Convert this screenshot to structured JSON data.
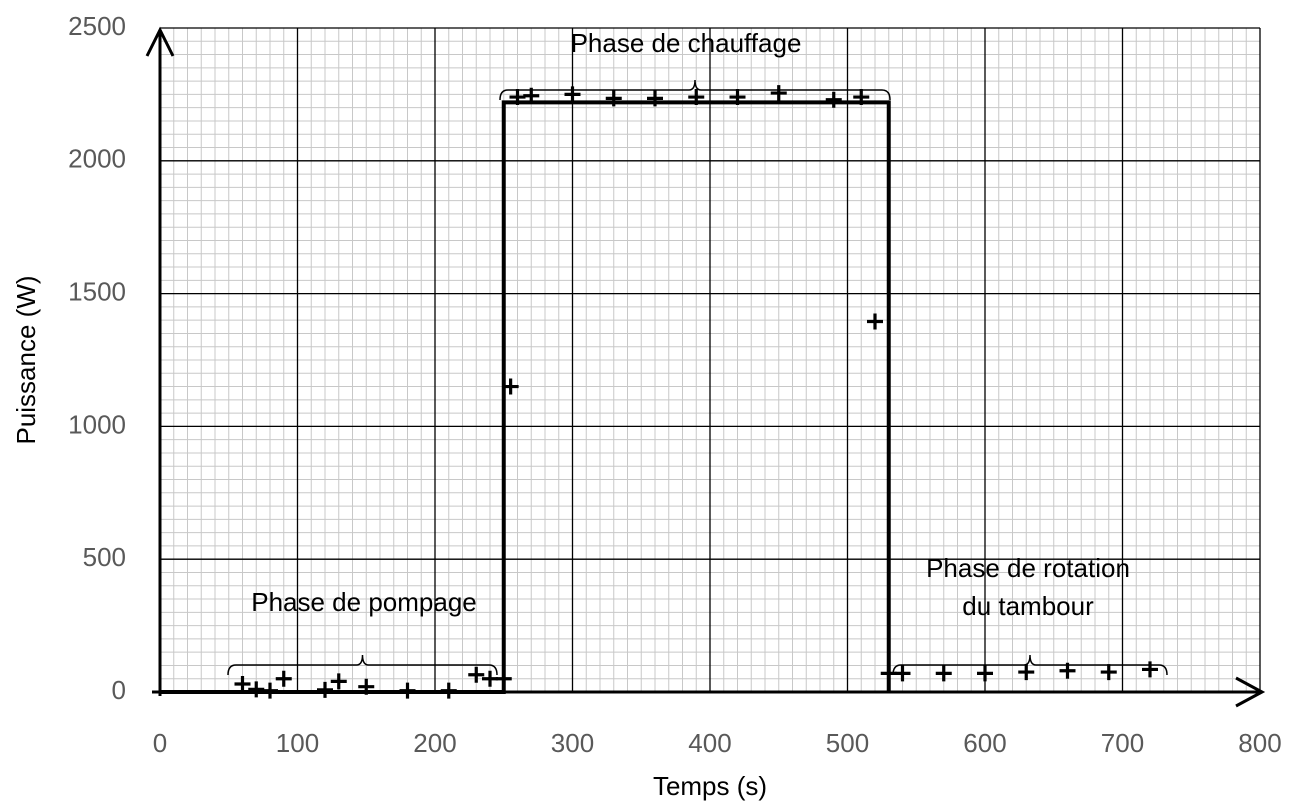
{
  "chart_data": {
    "type": "scatter",
    "xlabel": "Temps (s)",
    "ylabel": "Puissance (W)",
    "xlim": [
      0,
      800
    ],
    "ylim": [
      0,
      2500
    ],
    "xticks": [
      0,
      100,
      200,
      300,
      400,
      500,
      600,
      700,
      800
    ],
    "yticks": [
      0,
      500,
      1000,
      1500,
      2000,
      2500
    ],
    "grid": true,
    "minor_grid": {
      "x": 10,
      "y": 50
    },
    "color": "#000000",
    "x": [
      60,
      70,
      80,
      90,
      120,
      130,
      150,
      180,
      210,
      230,
      240,
      250,
      255,
      260,
      270,
      300,
      330,
      360,
      390,
      420,
      450,
      490,
      510,
      520,
      530,
      540,
      570,
      600,
      630,
      660,
      690,
      720
    ],
    "values": [
      30,
      10,
      5,
      50,
      8,
      40,
      20,
      5,
      5,
      65,
      50,
      50,
      1150,
      2240,
      2245,
      2250,
      2235,
      2235,
      2240,
      2240,
      2255,
      2230,
      2240,
      1395,
      70,
      70,
      70,
      70,
      75,
      80,
      75,
      85
    ],
    "step_line": {
      "x": [
        0,
        250,
        250,
        530,
        530
      ],
      "values": [
        0,
        0,
        2220,
        2220,
        0
      ]
    },
    "annotations": [
      {
        "text": [
          "Phase de chauffage"
        ]
      },
      {
        "text": [
          "Phase de pompage"
        ]
      },
      {
        "text": [
          "Phase de rotation",
          "du tambour"
        ]
      }
    ]
  }
}
